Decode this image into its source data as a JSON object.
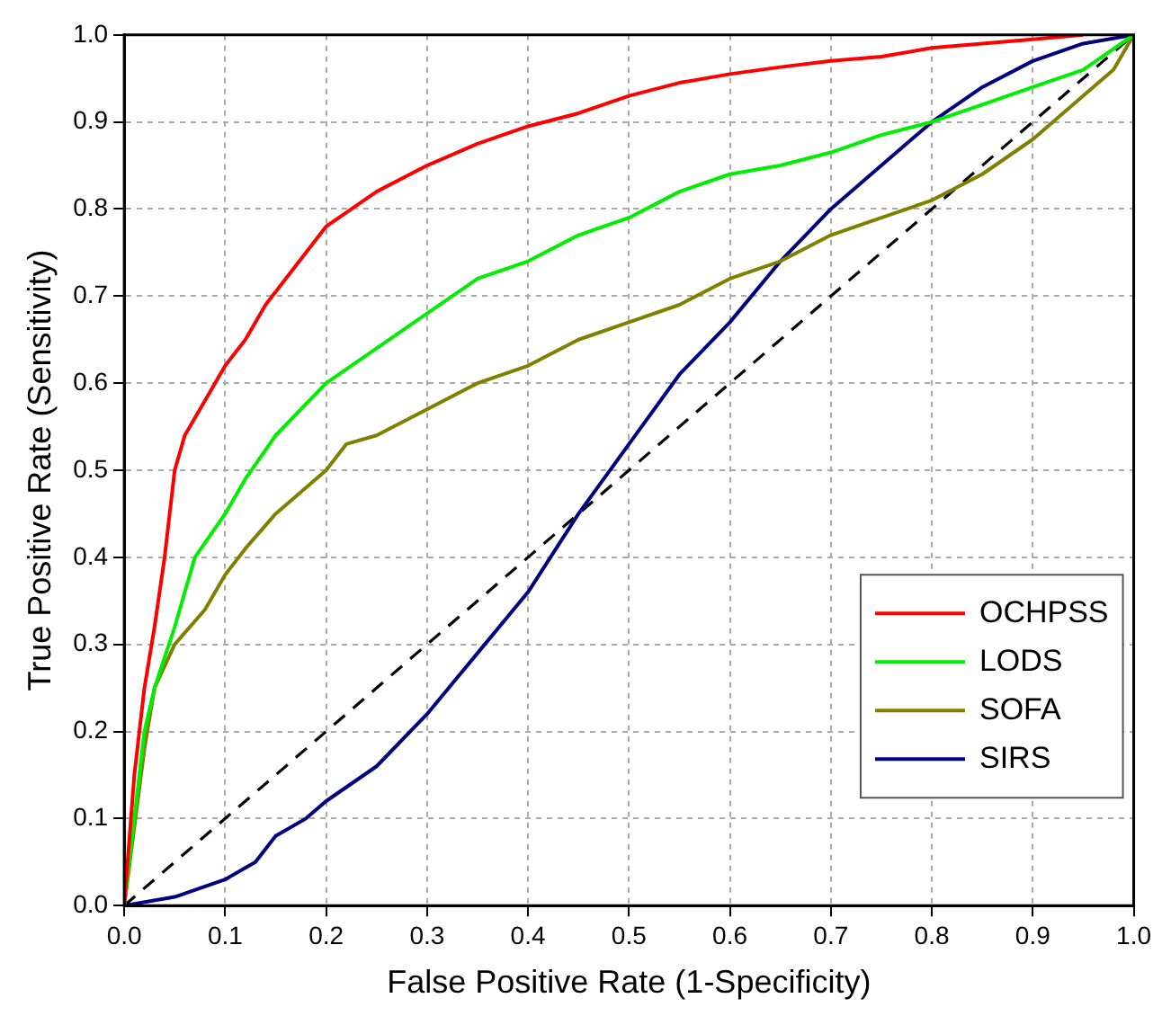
{
  "chart_data": {
    "type": "line",
    "xlabel": "False Positive Rate (1-Specificity)",
    "ylabel": "True Positive Rate (Sensitivity)",
    "xlim": [
      0,
      1
    ],
    "ylim": [
      0,
      1
    ],
    "xticks": [
      {
        "value": 0,
        "label": "0.0"
      },
      {
        "value": 0.1,
        "label": "0.1"
      },
      {
        "value": 0.2,
        "label": "0.2"
      },
      {
        "value": 0.3,
        "label": "0.3"
      },
      {
        "value": 0.4,
        "label": "0.4"
      },
      {
        "value": 0.5,
        "label": "0.5"
      },
      {
        "value": 0.6,
        "label": "0.6"
      },
      {
        "value": 0.7,
        "label": "0.7"
      },
      {
        "value": 0.8,
        "label": "0.8"
      },
      {
        "value": 0.9,
        "label": "0.9"
      },
      {
        "value": 1,
        "label": "1.0"
      }
    ],
    "yticks": [
      {
        "value": 0,
        "label": "0.0"
      },
      {
        "value": 0.1,
        "label": "0.1"
      },
      {
        "value": 0.2,
        "label": "0.2"
      },
      {
        "value": 0.3,
        "label": "0.3"
      },
      {
        "value": 0.4,
        "label": "0.4"
      },
      {
        "value": 0.5,
        "label": "0.5"
      },
      {
        "value": 0.6,
        "label": "0.6"
      },
      {
        "value": 0.7,
        "label": "0.7"
      },
      {
        "value": 0.8,
        "label": "0.8"
      },
      {
        "value": 0.9,
        "label": "0.9"
      },
      {
        "value": 1,
        "label": "1.0"
      }
    ],
    "grid": true,
    "legend": "bottom right",
    "marker": "none",
    "line_style": "solid",
    "series": [
      {
        "name": "OCHPSS",
        "color": "#ff0000",
        "x": [
          0,
          0.01,
          0.02,
          0.03,
          0.04,
          0.05,
          0.06,
          0.08,
          0.1,
          0.12,
          0.14,
          0.16,
          0.2,
          0.25,
          0.3,
          0.35,
          0.4,
          0.45,
          0.5,
          0.55,
          0.6,
          0.65,
          0.7,
          0.75,
          0.8,
          0.85,
          0.9,
          0.95
        ],
        "values": [
          0,
          0.15,
          0.25,
          0.32,
          0.4,
          0.5,
          0.54,
          0.58,
          0.62,
          0.65,
          0.69,
          0.72,
          0.78,
          0.82,
          0.85,
          0.875,
          0.895,
          0.91,
          0.93,
          0.945,
          0.955,
          0.963,
          0.97,
          0.975,
          0.985,
          0.99,
          0.995,
          1
        ]
      },
      {
        "name": "LODS",
        "color": "#00ee00",
        "x": [
          0,
          0.01,
          0.02,
          0.03,
          0.05,
          0.07,
          0.1,
          0.12,
          0.15,
          0.2,
          0.25,
          0.3,
          0.35,
          0.4,
          0.45,
          0.5,
          0.55,
          0.6,
          0.65,
          0.7,
          0.75,
          0.8,
          0.85,
          0.9,
          0.95,
          1
        ],
        "values": [
          0,
          0.1,
          0.2,
          0.25,
          0.32,
          0.4,
          0.45,
          0.49,
          0.54,
          0.6,
          0.64,
          0.68,
          0.72,
          0.74,
          0.77,
          0.79,
          0.82,
          0.84,
          0.85,
          0.865,
          0.885,
          0.9,
          0.92,
          0.94,
          0.96,
          1
        ]
      },
      {
        "name": "SOFA",
        "color": "#808000",
        "x": [
          0,
          0.02,
          0.03,
          0.05,
          0.08,
          0.1,
          0.12,
          0.15,
          0.2,
          0.22,
          0.25,
          0.3,
          0.35,
          0.4,
          0.45,
          0.5,
          0.55,
          0.6,
          0.65,
          0.7,
          0.75,
          0.8,
          0.85,
          0.9,
          0.95,
          0.98,
          1
        ],
        "values": [
          0,
          0.18,
          0.25,
          0.3,
          0.34,
          0.38,
          0.41,
          0.45,
          0.5,
          0.53,
          0.54,
          0.57,
          0.6,
          0.62,
          0.65,
          0.67,
          0.69,
          0.72,
          0.74,
          0.77,
          0.79,
          0.81,
          0.84,
          0.88,
          0.93,
          0.96,
          1
        ]
      },
      {
        "name": "SIRS",
        "color": "#000080",
        "x": [
          0,
          0.05,
          0.1,
          0.13,
          0.15,
          0.18,
          0.2,
          0.25,
          0.3,
          0.35,
          0.4,
          0.45,
          0.5,
          0.55,
          0.6,
          0.65,
          0.7,
          0.75,
          0.8,
          0.85,
          0.9,
          0.95,
          1
        ],
        "values": [
          0,
          0.01,
          0.03,
          0.05,
          0.08,
          0.1,
          0.12,
          0.16,
          0.22,
          0.29,
          0.36,
          0.45,
          0.53,
          0.61,
          0.67,
          0.74,
          0.8,
          0.85,
          0.9,
          0.94,
          0.97,
          0.99,
          1
        ]
      },
      {
        "color": "#000000",
        "line_style": "dashed",
        "x": [
          0,
          1
        ],
        "values": [
          0,
          1
        ]
      }
    ]
  }
}
